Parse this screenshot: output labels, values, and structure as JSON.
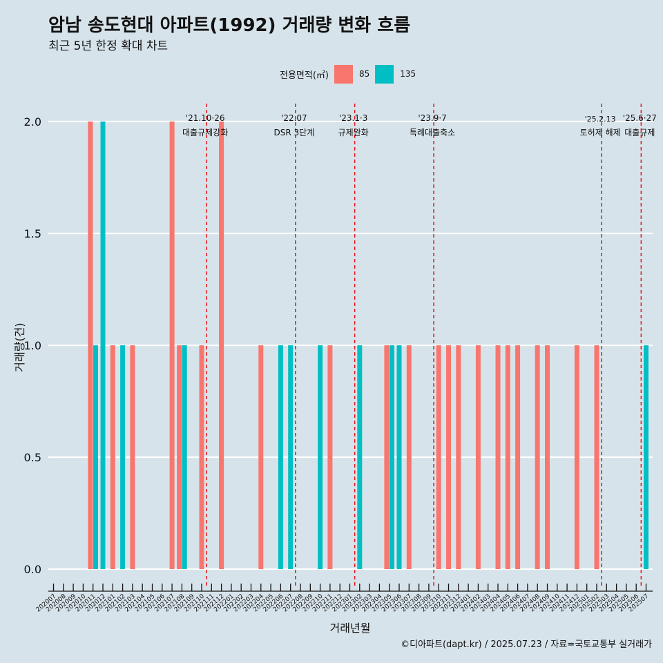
{
  "title": "암남 송도현대 아파트(1992) 거래량 변화 흐름",
  "subtitle": "최근 5년 한정 확대 차트",
  "caption": "©디아파트(dapt.kr) / 2025.07.23 / 자료=국토교통부 실거래가",
  "legend": {
    "title": "전용면적(㎡)",
    "items": [
      {
        "label": "85",
        "color": "#f8766d"
      },
      {
        "label": "135",
        "color": "#00bfc4"
      }
    ]
  },
  "chart_data": {
    "type": "bar",
    "title": "암남 송도현대 아파트(1992) 거래량 변화 흐름",
    "subtitle": "최근 5년 한정 확대 차트",
    "xlabel": "거래년월",
    "ylabel": "거래량(건)",
    "ylim": [
      -0.08,
      2.08
    ],
    "yticks": [
      0.0,
      0.5,
      1.0,
      1.5,
      2.0
    ],
    "ytick_labels": [
      "0.0",
      "0.5",
      "1.0",
      "1.5",
      "2.0"
    ],
    "categories": [
      "202007",
      "202008",
      "202009",
      "202010",
      "202011",
      "202012",
      "202101",
      "202102",
      "202103",
      "202104",
      "202105",
      "202106",
      "202107",
      "202108",
      "202109",
      "202110",
      "202111",
      "202112",
      "202201",
      "202202",
      "202203",
      "202204",
      "202205",
      "202206",
      "202207",
      "202208",
      "202209",
      "202210",
      "202211",
      "202212",
      "202301",
      "202302",
      "202303",
      "202304",
      "202305",
      "202306",
      "202307",
      "202308",
      "202309",
      "202310",
      "202311",
      "202312",
      "202401",
      "202402",
      "202403",
      "202404",
      "202405",
      "202406",
      "202407",
      "202408",
      "202409",
      "202410",
      "202411",
      "202412",
      "202501",
      "202502",
      "202503",
      "202504",
      "202505",
      "202506",
      "202507"
    ],
    "series": [
      {
        "name": "85",
        "color": "#f8766d",
        "values": [
          0,
          0,
          0,
          0,
          2,
          0,
          1,
          0,
          1,
          0,
          0,
          0,
          2,
          1,
          0,
          1,
          0,
          2,
          0,
          0,
          0,
          1,
          0,
          0,
          0,
          0,
          0,
          0,
          1,
          0,
          0,
          0,
          0,
          0,
          1,
          0,
          1,
          0,
          0,
          1,
          1,
          1,
          0,
          1,
          0,
          1,
          1,
          1,
          0,
          1,
          1,
          0,
          0,
          1,
          0,
          1,
          0,
          0,
          0,
          0,
          0
        ]
      },
      {
        "name": "135",
        "color": "#00bfc4",
        "values": [
          0,
          0,
          0,
          0,
          1,
          2,
          0,
          1,
          0,
          0,
          0,
          0,
          0,
          1,
          0,
          0,
          0,
          0,
          0,
          0,
          0,
          0,
          0,
          1,
          1,
          0,
          0,
          1,
          0,
          0,
          0,
          1,
          0,
          0,
          1,
          1,
          0,
          0,
          0,
          0,
          0,
          0,
          0,
          0,
          0,
          0,
          0,
          0,
          0,
          0,
          0,
          0,
          0,
          0,
          0,
          0,
          0,
          0,
          0,
          0,
          1
        ]
      }
    ],
    "annotations": [
      {
        "at": "202110",
        "date": "'21.10·26",
        "label": "대출규제강화"
      },
      {
        "at": "202207",
        "date": "'22.07",
        "label": "DSR 3단계"
      },
      {
        "at": "202301",
        "date": "'23.1·3",
        "label": "규제완화"
      },
      {
        "at": "202309",
        "date": "'23.9·7",
        "label": "특례대출축소"
      },
      {
        "at": "202502",
        "date": "'25.2.13",
        "label": "토허제 해제"
      },
      {
        "at": "202506",
        "date": "'25.6·27",
        "label": "대출규제"
      }
    ]
  }
}
